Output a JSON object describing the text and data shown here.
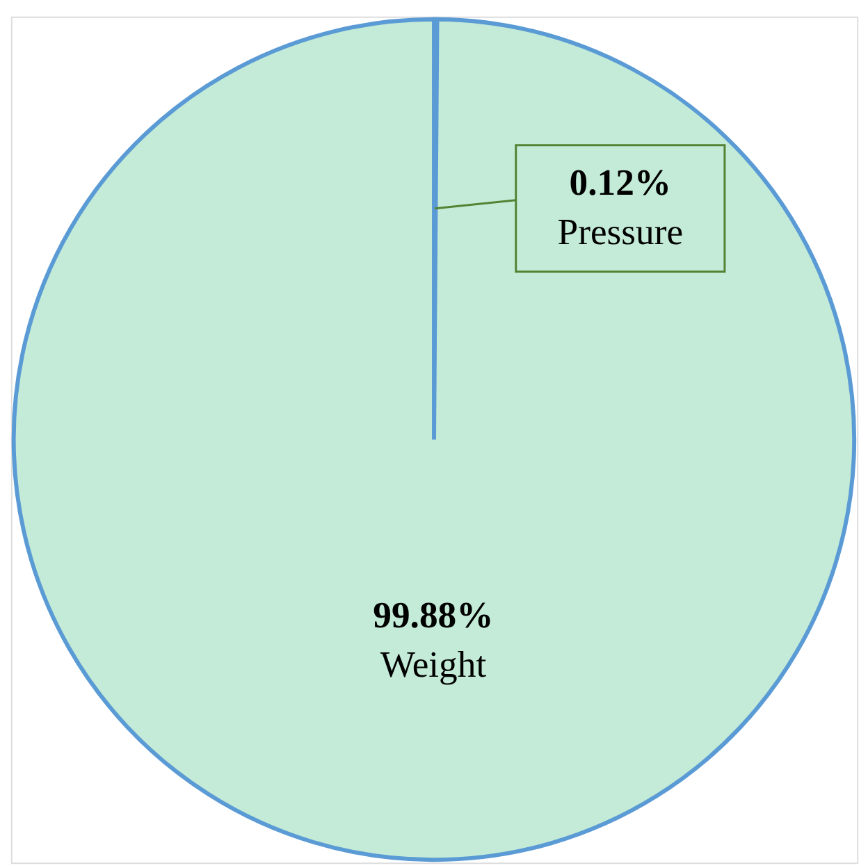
{
  "chart_data": {
    "type": "pie",
    "categories": [
      "Pressure",
      "Weight"
    ],
    "values": [
      0.12,
      99.88
    ],
    "colors": [
      "#c3ebd7",
      "#c3ebd7"
    ],
    "value_labels": [
      "0.12%",
      "99.88%"
    ]
  }
}
